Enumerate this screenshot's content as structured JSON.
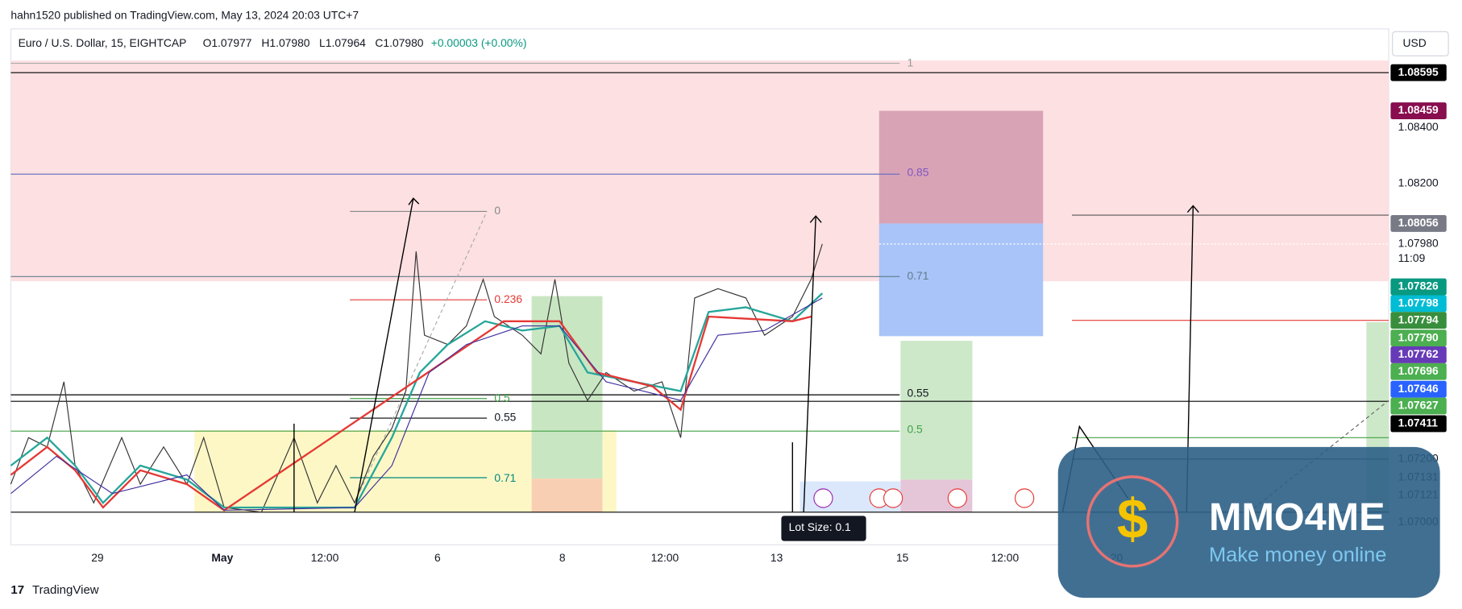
{
  "header": {
    "publisher": "hahn1520 published on TradingView.com, May 13, 2024 20:03 UTC+7"
  },
  "legend": {
    "symbol": "Euro / U.S. Dollar, 15, EIGHTCAP",
    "open": "O1.07977",
    "high": "H1.07980",
    "low": "L1.07964",
    "close": "C1.07980",
    "change": "+0.00003 (+0.00%)"
  },
  "currency": "USD",
  "price_scale": [
    "1.08595",
    "1.08459",
    "1.08400",
    "1.08200",
    "1.08056",
    "1.07980",
    "11:09",
    "1.07826",
    "1.07798",
    "1.07794",
    "1.07790",
    "1.07762",
    "1.07696",
    "1.07646",
    "1.07627",
    "1.07411",
    "1.07200",
    "1.07131",
    "1.07121",
    "1.07000"
  ],
  "time_scale": [
    "29",
    "May",
    "12:00",
    "6",
    "8",
    "12:00",
    "13",
    "15",
    "12:00",
    "20"
  ],
  "fib_right": [
    "1",
    "0.85",
    "0.71",
    "0.55",
    "0.5"
  ],
  "fib_left": [
    "0",
    "0.236",
    "0.5",
    "0.55",
    "0.71"
  ],
  "tooltip": "Lot Size: 0.1",
  "footer": "TradingView",
  "watermark": {
    "brand": "MMO4ME",
    "slogan": "Make money online"
  }
}
